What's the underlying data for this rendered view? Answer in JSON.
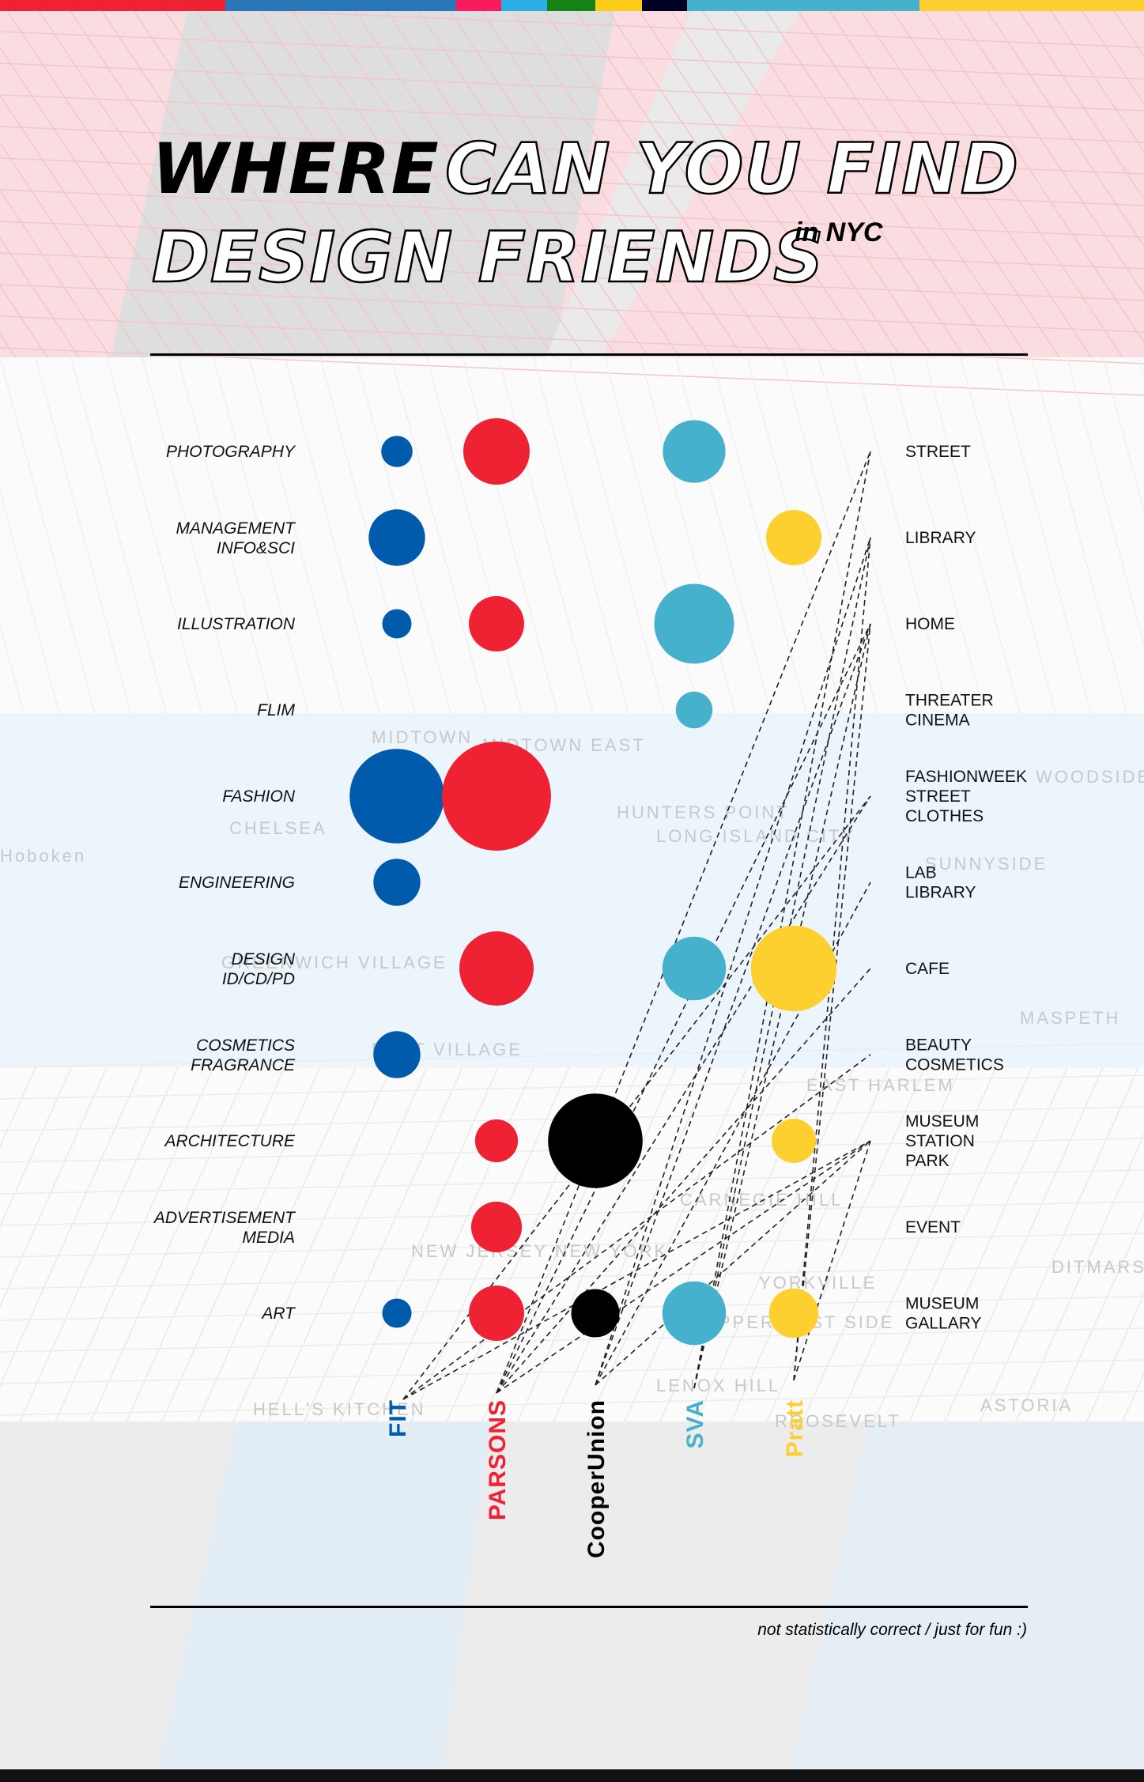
{
  "colors": {
    "fit": "#005bac",
    "parsons": "#ee2233",
    "cooper_union": "#000000",
    "sva": "#45b1cd",
    "pratt": "#fed02f",
    "top_bar": [
      "#ee2233",
      "#2a77b7",
      "#f81a5d",
      "#2aaee3",
      "#148314",
      "#fccc18",
      "#010126",
      "#45b1cd",
      "#fed02f"
    ]
  },
  "title": {
    "solid": "WHERE",
    "outline_line1": "CAN YOU FIND",
    "outline_line2": "DESIGN FRIENDS",
    "superscript": "in NYC"
  },
  "footnote": "not statistically correct / just for fun :)",
  "map_labels": [
    "MIDTOWN",
    "MIDTOWN EAST",
    "CHELSEA",
    "HUNTERS POINT",
    "LONG ISLAND CITY",
    "WOODSIDE",
    "SUNNYSIDE",
    "Hoboken",
    "GREENWICH VILLAGE",
    "MASPETH",
    "EAST VILLAGE",
    "EAST HARLEM",
    "CARNEGIE HILL",
    "YORKVILLE",
    "UPPER EAST SIDE",
    "LENOX HILL",
    "HELL'S KITCHEN",
    "ROOSEVELT",
    "ASTORIA",
    "DITMARS STEINWAY",
    "NEW JERSEY NEW YORK"
  ],
  "chart_data": {
    "type": "bubble-matrix",
    "title": "WHERE CAN YOU FIND DESIGN FRIENDS in NYC",
    "schools": [
      {
        "name": "FIT",
        "color": "#005bac"
      },
      {
        "name": "PARSONS",
        "color": "#ee2233"
      },
      {
        "name": "CooperUnion",
        "color": "#000000"
      },
      {
        "name": "SVA",
        "color": "#45b1cd"
      },
      {
        "name": "Pratt",
        "color": "#fed02f"
      }
    ],
    "majors": [
      "PHOTOGRAPHY",
      "MANAGEMENT\nINFO&SCI",
      "ILLUSTRATION",
      "FLIM",
      "FASHION",
      "ENGINEERING",
      "DESIGN\nID/CD/PD",
      "COSMETICS\nFRAGRANCE",
      "ARCHITECTURE",
      "ADVERTISEMENT\nMEDIA",
      "ART"
    ],
    "places": [
      "STREET",
      "LIBRARY",
      "HOME",
      "THREATER\nCINEMA",
      "FASHIONWEEK\nSTREET\nCLOTHES",
      "LAB\nLIBRARY",
      "CAFE",
      "BEAUTY\nCOSMETICS",
      "MUSEUM\nSTATION\nPARK",
      "EVENT",
      "MUSEUM\nGALLARY"
    ],
    "bubble_size_note": "relative size 0-100",
    "values": [
      [
        8,
        36,
        0,
        32,
        0
      ],
      [
        26,
        0,
        0,
        0,
        25
      ],
      [
        7,
        25,
        0,
        52,
        0
      ],
      [
        0,
        0,
        0,
        11,
        0
      ],
      [
        73,
        97,
        0,
        0,
        0
      ],
      [
        18,
        0,
        0,
        0,
        0
      ],
      [
        0,
        45,
        0,
        33,
        60
      ],
      [
        18,
        0,
        0,
        0,
        0
      ],
      [
        0,
        15,
        73,
        0,
        16
      ],
      [
        0,
        21,
        0,
        0,
        0
      ],
      [
        7,
        25,
        19,
        33,
        20
      ]
    ],
    "links": [
      {
        "school": "FIT",
        "places": [
          "FASHIONWEEK\nSTREET\nCLOTHES",
          "BEAUTY\nCOSMETICS",
          "MUSEUM\nSTATION\nPARK"
        ]
      },
      {
        "school": "PARSONS",
        "places": [
          "STREET",
          "HOME",
          "FASHIONWEEK\nSTREET\nCLOTHES",
          "CAFE",
          "MUSEUM\nSTATION\nPARK"
        ]
      },
      {
        "school": "CooperUnion",
        "places": [
          "LIBRARY",
          "HOME",
          "LAB\nLIBRARY",
          "MUSEUM\nSTATION\nPARK"
        ]
      },
      {
        "school": "SVA",
        "places": [
          "STREET",
          "LIBRARY",
          "HOME"
        ]
      },
      {
        "school": "Pratt",
        "places": [
          "LIBRARY",
          "HOME",
          "MUSEUM\nSTATION\nPARK"
        ]
      }
    ],
    "grid": false,
    "legend": "none"
  }
}
